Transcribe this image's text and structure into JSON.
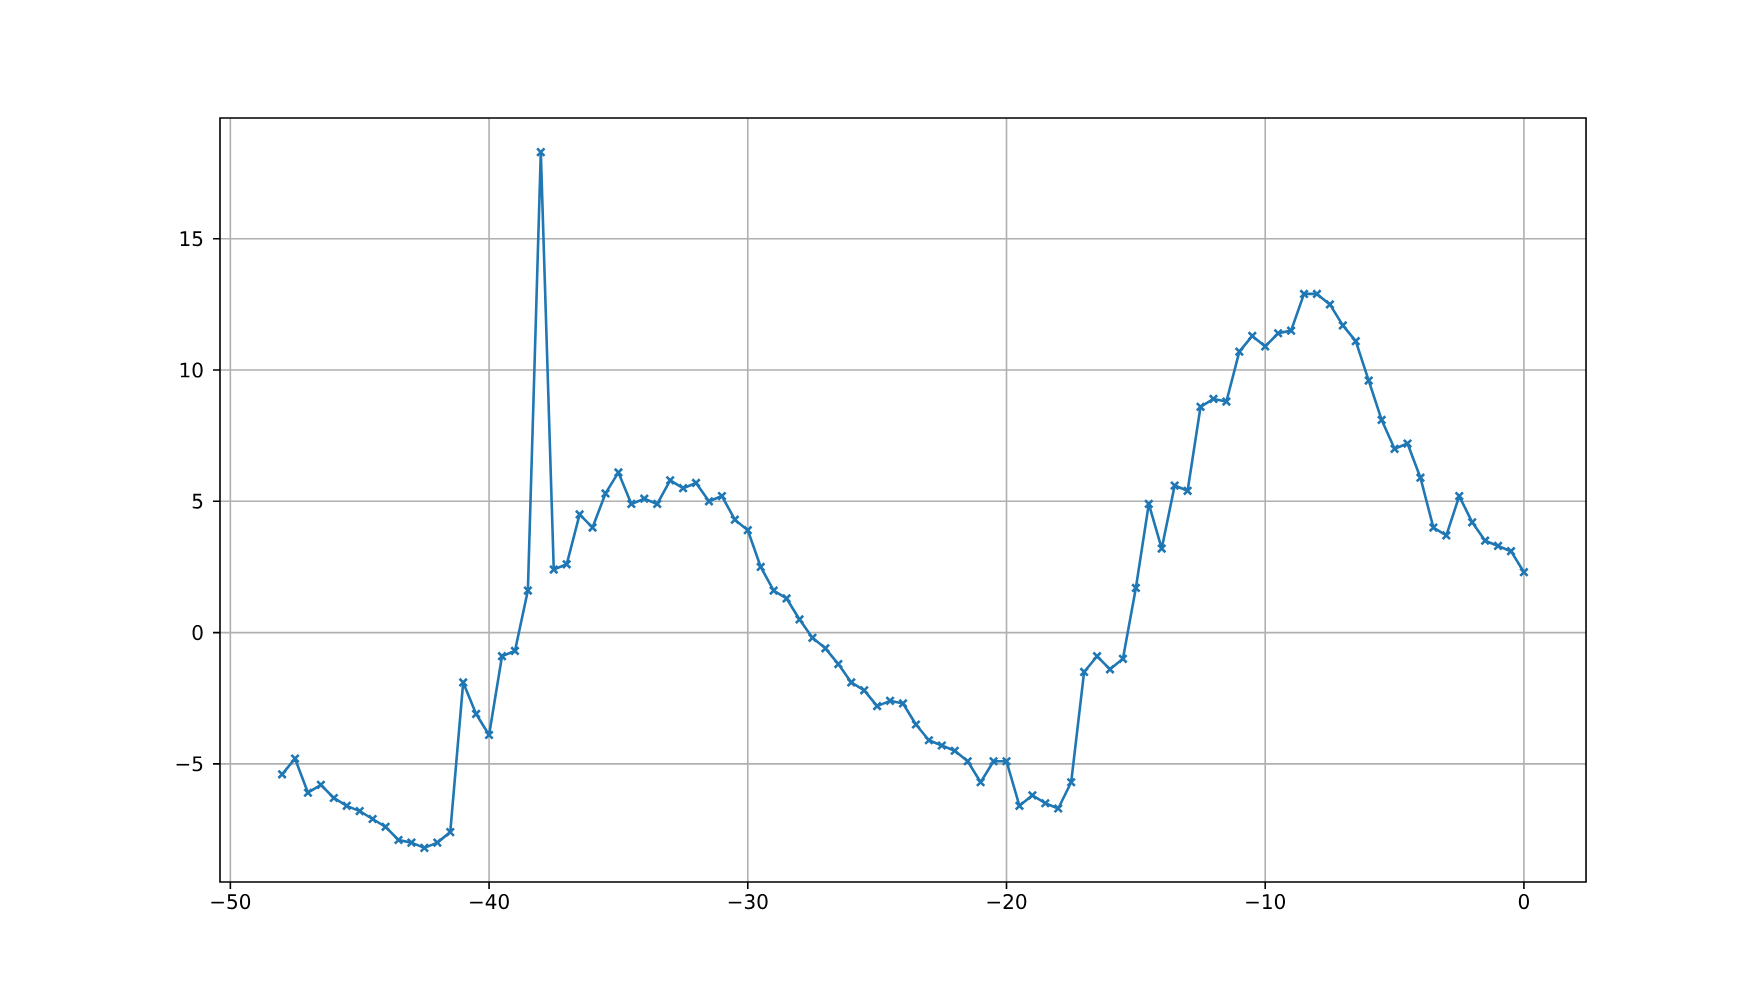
{
  "chart_data": {
    "type": "line",
    "x": [
      -48,
      -47.5,
      -47,
      -46.5,
      -46,
      -45.5,
      -45,
      -44.5,
      -44,
      -43.5,
      -43,
      -42.5,
      -42,
      -41.5,
      -41,
      -40.5,
      -40,
      -39.5,
      -39,
      -38.5,
      -38,
      -37.5,
      -37,
      -36.5,
      -36,
      -35.5,
      -35,
      -34.5,
      -34,
      -33.5,
      -33,
      -32.5,
      -32,
      -31.5,
      -31,
      -30.5,
      -30,
      -29.5,
      -29,
      -28.5,
      -28,
      -27.5,
      -27,
      -26.5,
      -26,
      -25.5,
      -25,
      -24.5,
      -24,
      -23.5,
      -23,
      -22.5,
      -22,
      -21.5,
      -21,
      -20.5,
      -20,
      -19.5,
      -19,
      -18.5,
      -18,
      -17.5,
      -17,
      -16.5,
      -16,
      -15.5,
      -15,
      -14.5,
      -14,
      -13.5,
      -13,
      -12.5,
      -12,
      -11.5,
      -11,
      -10.5,
      -10,
      -9.5,
      -9,
      -8.5,
      -8,
      -7.5,
      -7,
      -6.5,
      -6,
      -5.5,
      -5,
      -4.5,
      -4,
      -3.5,
      -3,
      -2.5,
      -2,
      -1.5,
      -1,
      -0.5,
      0
    ],
    "values": [
      -5.4,
      -4.8,
      -6.1,
      -5.8,
      -6.3,
      -6.6,
      -6.8,
      -7.1,
      -7.4,
      -7.9,
      -8.0,
      -8.2,
      -8.0,
      -7.6,
      -1.9,
      -3.1,
      -3.9,
      -0.9,
      -0.7,
      1.6,
      18.3,
      2.4,
      2.6,
      4.5,
      4.0,
      5.3,
      6.1,
      4.9,
      5.1,
      4.9,
      5.8,
      5.5,
      5.7,
      5.0,
      5.2,
      4.3,
      3.9,
      2.5,
      1.6,
      1.3,
      0.5,
      -0.2,
      -0.6,
      -1.2,
      -1.9,
      -2.2,
      -2.8,
      -2.6,
      -2.7,
      -3.5,
      -4.1,
      -4.3,
      -4.5,
      -4.9,
      -5.7,
      -4.9,
      -4.9,
      -6.6,
      -6.2,
      -6.5,
      -6.7,
      -5.7,
      -1.5,
      -0.9,
      -1.4,
      -1.0,
      1.7,
      4.9,
      3.2,
      5.6,
      5.4,
      8.6,
      8.9,
      8.8,
      10.7,
      11.3,
      10.9,
      11.4,
      11.5,
      12.9,
      12.9,
      12.5,
      11.7,
      11.1,
      9.6,
      8.1,
      7.0,
      7.2,
      5.9,
      4.0,
      3.7,
      5.2,
      4.2,
      3.5,
      3.3,
      3.1,
      2.3
    ],
    "color": "#1f77b4",
    "marker": "cross",
    "line_style": "solid",
    "grid": true,
    "xlim": [
      -50.4,
      2.4
    ],
    "ylim": [
      -9.5,
      19.6
    ],
    "xticks": [
      {
        "value": -50,
        "label": "−50"
      },
      {
        "value": -40,
        "label": "−40"
      },
      {
        "value": -30,
        "label": "−30"
      },
      {
        "value": -20,
        "label": "−20"
      },
      {
        "value": -10,
        "label": "−10"
      },
      0
    ],
    "yticks": [
      {
        "value": -5,
        "label": "−5"
      },
      0,
      5,
      10,
      15
    ]
  }
}
